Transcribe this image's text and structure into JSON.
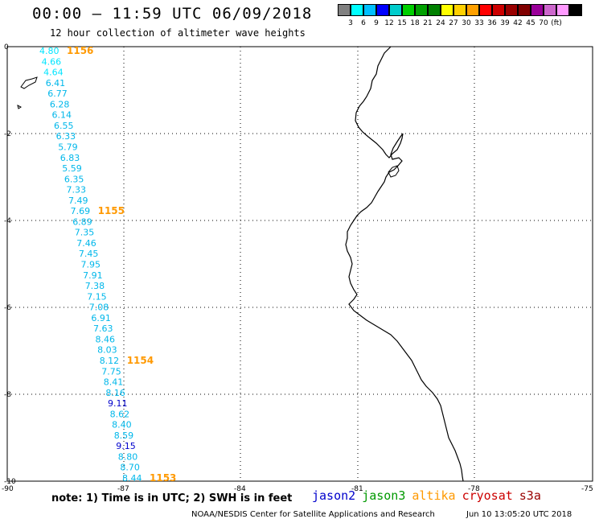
{
  "header": {
    "title": "00:00 – 11:59 UTC 06/09/2018",
    "subtitle": "12 hour collection of altimeter wave heights"
  },
  "legend": {
    "unit": "(ft)",
    "colors": [
      "#808080",
      "#00ffff",
      "#00bfff",
      "#0000ff",
      "#00cccc",
      "#00d000",
      "#00a000",
      "#008000",
      "#ffff00",
      "#ffd000",
      "#ffa000",
      "#ff0000",
      "#cc0000",
      "#990000",
      "#800000",
      "#990099",
      "#cc66cc",
      "#ff99ff",
      "#000000"
    ],
    "labels": [
      "3",
      "6",
      "9",
      "12",
      "15",
      "18",
      "21",
      "24",
      "27",
      "30",
      "33",
      "36",
      "39",
      "42",
      "45",
      "70"
    ]
  },
  "axes": {
    "lat_ticks": [
      "0",
      "-2",
      "-4",
      "-6",
      "-8",
      "-10"
    ],
    "lon_ticks": [
      "-90",
      "-87",
      "-84",
      "-81",
      "-78",
      "-75"
    ]
  },
  "track": {
    "values": [
      {
        "v": "4.80",
        "c": "#00e5ff"
      },
      {
        "v": "4.66",
        "c": "#00e5ff"
      },
      {
        "v": "4.64",
        "c": "#00e5ff"
      },
      {
        "v": "6.41",
        "c": "#00b7ea"
      },
      {
        "v": "6.77",
        "c": "#00b7ea"
      },
      {
        "v": "6.28",
        "c": "#00b7ea"
      },
      {
        "v": "6.14",
        "c": "#00b7ea"
      },
      {
        "v": "6.55",
        "c": "#00b7ea"
      },
      {
        "v": "6.33",
        "c": "#00b7ea"
      },
      {
        "v": "5.79",
        "c": "#00b7ea"
      },
      {
        "v": "6.83",
        "c": "#00b7ea"
      },
      {
        "v": "5.59",
        "c": "#00b7ea"
      },
      {
        "v": "6.35",
        "c": "#00b7ea"
      },
      {
        "v": "7.33",
        "c": "#00b7ea"
      },
      {
        "v": "7.49",
        "c": "#00b7ea"
      },
      {
        "v": "7.69",
        "c": "#00b7ea"
      },
      {
        "v": "6.89",
        "c": "#00b7ea"
      },
      {
        "v": "7.35",
        "c": "#00b7ea"
      },
      {
        "v": "7.46",
        "c": "#00b7ea"
      },
      {
        "v": "7.45",
        "c": "#00b7ea"
      },
      {
        "v": "7.95",
        "c": "#00b7ea"
      },
      {
        "v": "7.91",
        "c": "#00b7ea"
      },
      {
        "v": "7.38",
        "c": "#00b7ea"
      },
      {
        "v": "7.15",
        "c": "#00b7ea"
      },
      {
        "v": "7.08",
        "c": "#00b7ea"
      },
      {
        "v": "6.91",
        "c": "#00b7ea"
      },
      {
        "v": "7.63",
        "c": "#00b7ea"
      },
      {
        "v": "8.46",
        "c": "#00b7ea"
      },
      {
        "v": "8.03",
        "c": "#00b7ea"
      },
      {
        "v": "8.12",
        "c": "#00b7ea"
      },
      {
        "v": "7.75",
        "c": "#00b7ea"
      },
      {
        "v": "8.41",
        "c": "#00b7ea"
      },
      {
        "v": "8.16",
        "c": "#00b7ea"
      },
      {
        "v": "9.11",
        "c": "#0000cc"
      },
      {
        "v": "8.62",
        "c": "#00b7ea"
      },
      {
        "v": "8.40",
        "c": "#00b7ea"
      },
      {
        "v": "8.59",
        "c": "#00b7ea"
      },
      {
        "v": "9.15",
        "c": "#0000cc"
      },
      {
        "v": "8.80",
        "c": "#00b7ea"
      },
      {
        "v": "8.70",
        "c": "#00b7ea"
      },
      {
        "v": "8.44",
        "c": "#00b7ea"
      }
    ],
    "times": [
      {
        "t": "1156",
        "row": 0
      },
      {
        "t": "1155",
        "row": 15
      },
      {
        "t": "1154",
        "row": 29
      },
      {
        "t": "1153",
        "row": 40
      }
    ],
    "time_color": "#ff9900"
  },
  "footer": {
    "note": "note:  1) Time is in UTC;  2) SWH is in feet",
    "satellites": [
      {
        "name": "jason2",
        "color": "#0000cc"
      },
      {
        "name": "jason3",
        "color": "#009900"
      },
      {
        "name": "altika",
        "color": "#ff9900"
      },
      {
        "name": "cryosat",
        "color": "#cc0000"
      },
      {
        "name": "s3a",
        "color": "#990000"
      }
    ],
    "credit": "NOAA/NESDIS Center for Satellite Applications and Research",
    "timestamp": "Jun 10 13:05:20 UTC 2018"
  }
}
